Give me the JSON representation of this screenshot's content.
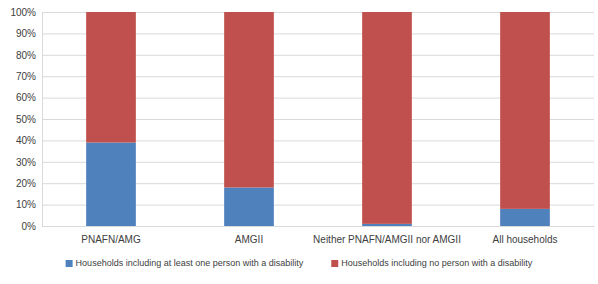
{
  "chart_data": {
    "type": "bar",
    "stacked": true,
    "grid": true,
    "legend": "bottom",
    "categories": [
      "PNAFN/AMG",
      "AMGII",
      "Neither PNAFN/AMGII nor AMGII",
      "All households"
    ],
    "series": [
      {
        "name": "Households including at least one person with a disability",
        "color": "#4f81bd",
        "values": [
          39,
          18,
          1,
          8
        ]
      },
      {
        "name": "Households including no person with a disability",
        "color": "#c0504d",
        "values": [
          61,
          82,
          99,
          92
        ]
      }
    ],
    "ylim": [
      0,
      100
    ],
    "yticks": [
      {
        "value": 0,
        "label": "0%"
      },
      {
        "value": 10,
        "label": "10%"
      },
      {
        "value": 20,
        "label": "20%"
      },
      {
        "value": 30,
        "label": "30%"
      },
      {
        "value": 40,
        "label": "40%"
      },
      {
        "value": 50,
        "label": "50%"
      },
      {
        "value": 60,
        "label": "60%"
      },
      {
        "value": 70,
        "label": "70%"
      },
      {
        "value": 80,
        "label": "80%"
      },
      {
        "value": 90,
        "label": "90%"
      },
      {
        "value": 100,
        "label": "100%"
      }
    ]
  }
}
